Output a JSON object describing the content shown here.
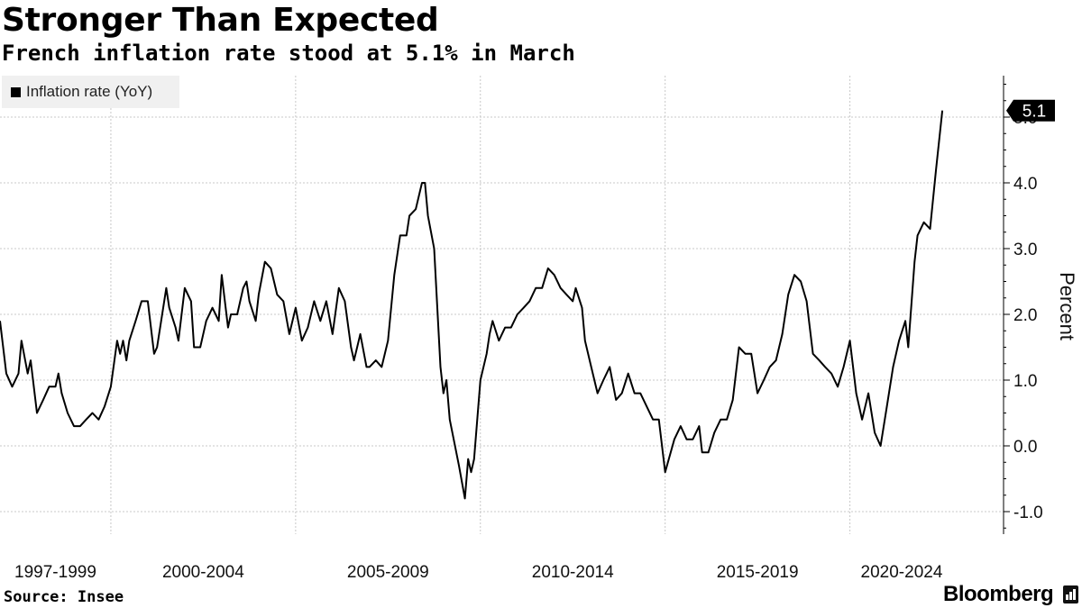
{
  "title": "Stronger Than Expected",
  "subtitle": "French inflation rate stood at 5.1% in March",
  "source": "Source: Insee",
  "brand": "Bloomberg",
  "colors": {
    "line": "#000000",
    "grid": "#c8c8c8",
    "legend_bg": "#f0f0f0",
    "callout_bg": "#000000",
    "callout_text": "#ffffff"
  },
  "chart_data": {
    "type": "line",
    "title": "Stronger Than Expected",
    "subtitle": "French inflation rate stood at 5.1% in March",
    "ylabel": "Percent",
    "xlabel": "",
    "ylim": [
      -1.4,
      5.7
    ],
    "yticks": [
      {
        "value": 5.0,
        "label": "5.0"
      },
      {
        "value": 4.0,
        "label": "4.0"
      },
      {
        "value": 3.0,
        "label": "3.0"
      },
      {
        "value": 2.0,
        "label": "2.0"
      },
      {
        "value": 1.0,
        "label": "1.0"
      },
      {
        "value": 0.0,
        "label": "0.0"
      },
      {
        "value": -1.0,
        "label": "-1.0"
      }
    ],
    "xlim": [
      1997.0,
      2023.67
    ],
    "x_gridlines": [
      2000.0,
      2005.0,
      2010.0,
      2015.0,
      2020.0
    ],
    "xtick_labels": [
      {
        "label": "1997-1999",
        "center": 1998.5
      },
      {
        "label": "2000-2004",
        "center": 2002.5
      },
      {
        "label": "2005-2009",
        "center": 2007.5
      },
      {
        "label": "2010-2014",
        "center": 2012.5
      },
      {
        "label": "2015-2019",
        "center": 2017.5
      },
      {
        "label": "2020-2024",
        "center": 2021.4
      }
    ],
    "legend": [
      {
        "label": "Inflation rate (YoY)",
        "color": "#000000"
      }
    ],
    "legend_position": "top-left",
    "grid": true,
    "last_value_label": "5.1",
    "series": [
      {
        "name": "Inflation rate (YoY)",
        "points": [
          [
            1997.0,
            1.9
          ],
          [
            1997.17,
            1.1
          ],
          [
            1997.33,
            0.9
          ],
          [
            1997.5,
            1.1
          ],
          [
            1997.58,
            1.6
          ],
          [
            1997.75,
            1.1
          ],
          [
            1997.83,
            1.3
          ],
          [
            1998.0,
            0.5
          ],
          [
            1998.17,
            0.7
          ],
          [
            1998.33,
            0.9
          ],
          [
            1998.5,
            0.9
          ],
          [
            1998.58,
            1.1
          ],
          [
            1998.67,
            0.8
          ],
          [
            1998.83,
            0.5
          ],
          [
            1999.0,
            0.3
          ],
          [
            1999.17,
            0.3
          ],
          [
            1999.33,
            0.4
          ],
          [
            1999.5,
            0.5
          ],
          [
            1999.67,
            0.4
          ],
          [
            1999.83,
            0.6
          ],
          [
            2000.0,
            0.9
          ],
          [
            2000.17,
            1.6
          ],
          [
            2000.25,
            1.4
          ],
          [
            2000.33,
            1.6
          ],
          [
            2000.42,
            1.3
          ],
          [
            2000.5,
            1.6
          ],
          [
            2000.67,
            1.9
          ],
          [
            2000.83,
            2.2
          ],
          [
            2001.0,
            2.2
          ],
          [
            2001.17,
            1.4
          ],
          [
            2001.25,
            1.5
          ],
          [
            2001.5,
            2.4
          ],
          [
            2001.58,
            2.1
          ],
          [
            2001.75,
            1.8
          ],
          [
            2001.83,
            1.6
          ],
          [
            2002.0,
            2.4
          ],
          [
            2002.17,
            2.2
          ],
          [
            2002.25,
            1.5
          ],
          [
            2002.42,
            1.5
          ],
          [
            2002.58,
            1.9
          ],
          [
            2002.75,
            2.1
          ],
          [
            2002.92,
            1.9
          ],
          [
            2003.0,
            2.6
          ],
          [
            2003.17,
            1.8
          ],
          [
            2003.25,
            2.0
          ],
          [
            2003.42,
            2.0
          ],
          [
            2003.58,
            2.4
          ],
          [
            2003.67,
            2.5
          ],
          [
            2003.75,
            2.2
          ],
          [
            2003.92,
            1.9
          ],
          [
            2004.0,
            2.3
          ],
          [
            2004.17,
            2.8
          ],
          [
            2004.33,
            2.7
          ],
          [
            2004.5,
            2.3
          ],
          [
            2004.67,
            2.2
          ],
          [
            2004.83,
            1.7
          ],
          [
            2005.0,
            2.1
          ],
          [
            2005.17,
            1.6
          ],
          [
            2005.33,
            1.8
          ],
          [
            2005.5,
            2.2
          ],
          [
            2005.67,
            1.9
          ],
          [
            2005.83,
            2.2
          ],
          [
            2006.0,
            1.7
          ],
          [
            2006.17,
            2.4
          ],
          [
            2006.33,
            2.2
          ],
          [
            2006.5,
            1.5
          ],
          [
            2006.58,
            1.3
          ],
          [
            2006.75,
            1.7
          ],
          [
            2006.92,
            1.2
          ],
          [
            2007.0,
            1.2
          ],
          [
            2007.17,
            1.3
          ],
          [
            2007.33,
            1.2
          ],
          [
            2007.5,
            1.6
          ],
          [
            2007.67,
            2.6
          ],
          [
            2007.83,
            3.2
          ],
          [
            2008.0,
            3.2
          ],
          [
            2008.08,
            3.5
          ],
          [
            2008.25,
            3.6
          ],
          [
            2008.42,
            4.0
          ],
          [
            2008.5,
            4.0
          ],
          [
            2008.58,
            3.5
          ],
          [
            2008.75,
            3.0
          ],
          [
            2008.92,
            1.2
          ],
          [
            2009.0,
            0.8
          ],
          [
            2009.08,
            1.0
          ],
          [
            2009.17,
            0.4
          ],
          [
            2009.42,
            -0.3
          ],
          [
            2009.58,
            -0.8
          ],
          [
            2009.67,
            -0.2
          ],
          [
            2009.75,
            -0.4
          ],
          [
            2009.83,
            -0.2
          ],
          [
            2010.0,
            1.0
          ],
          [
            2010.17,
            1.4
          ],
          [
            2010.25,
            1.7
          ],
          [
            2010.33,
            1.9
          ],
          [
            2010.5,
            1.6
          ],
          [
            2010.67,
            1.8
          ],
          [
            2010.83,
            1.8
          ],
          [
            2011.0,
            2.0
          ],
          [
            2011.17,
            2.1
          ],
          [
            2011.33,
            2.2
          ],
          [
            2011.5,
            2.4
          ],
          [
            2011.67,
            2.4
          ],
          [
            2011.83,
            2.7
          ],
          [
            2012.0,
            2.6
          ],
          [
            2012.17,
            2.4
          ],
          [
            2012.33,
            2.3
          ],
          [
            2012.5,
            2.2
          ],
          [
            2012.58,
            2.4
          ],
          [
            2012.75,
            2.1
          ],
          [
            2012.83,
            1.6
          ],
          [
            2013.0,
            1.2
          ],
          [
            2013.17,
            0.8
          ],
          [
            2013.33,
            1.0
          ],
          [
            2013.5,
            1.2
          ],
          [
            2013.67,
            0.7
          ],
          [
            2013.83,
            0.8
          ],
          [
            2014.0,
            1.1
          ],
          [
            2014.17,
            0.8
          ],
          [
            2014.33,
            0.8
          ],
          [
            2014.5,
            0.6
          ],
          [
            2014.67,
            0.4
          ],
          [
            2014.83,
            0.4
          ],
          [
            2015.0,
            -0.4
          ],
          [
            2015.25,
            0.1
          ],
          [
            2015.42,
            0.3
          ],
          [
            2015.58,
            0.1
          ],
          [
            2015.75,
            0.1
          ],
          [
            2015.92,
            0.3
          ],
          [
            2016.0,
            -0.1
          ],
          [
            2016.17,
            -0.1
          ],
          [
            2016.33,
            0.2
          ],
          [
            2016.5,
            0.4
          ],
          [
            2016.67,
            0.4
          ],
          [
            2016.83,
            0.7
          ],
          [
            2017.0,
            1.5
          ],
          [
            2017.17,
            1.4
          ],
          [
            2017.33,
            1.4
          ],
          [
            2017.5,
            0.8
          ],
          [
            2017.67,
            1.0
          ],
          [
            2017.83,
            1.2
          ],
          [
            2018.0,
            1.3
          ],
          [
            2018.17,
            1.7
          ],
          [
            2018.33,
            2.3
          ],
          [
            2018.5,
            2.6
          ],
          [
            2018.67,
            2.5
          ],
          [
            2018.83,
            2.2
          ],
          [
            2019.0,
            1.4
          ],
          [
            2019.17,
            1.3
          ],
          [
            2019.33,
            1.2
          ],
          [
            2019.5,
            1.1
          ],
          [
            2019.67,
            0.9
          ],
          [
            2019.83,
            1.2
          ],
          [
            2020.0,
            1.6
          ],
          [
            2020.17,
            0.8
          ],
          [
            2020.33,
            0.4
          ],
          [
            2020.5,
            0.8
          ],
          [
            2020.67,
            0.2
          ],
          [
            2020.83,
            0.0
          ],
          [
            2021.0,
            0.6
          ],
          [
            2021.17,
            1.2
          ],
          [
            2021.33,
            1.6
          ],
          [
            2021.5,
            1.9
          ],
          [
            2021.58,
            1.5
          ],
          [
            2021.75,
            2.8
          ],
          [
            2021.83,
            3.2
          ],
          [
            2022.0,
            3.4
          ],
          [
            2022.17,
            3.3
          ],
          [
            2022.33,
            4.2
          ],
          [
            2022.5,
            5.1
          ]
        ]
      }
    ]
  }
}
